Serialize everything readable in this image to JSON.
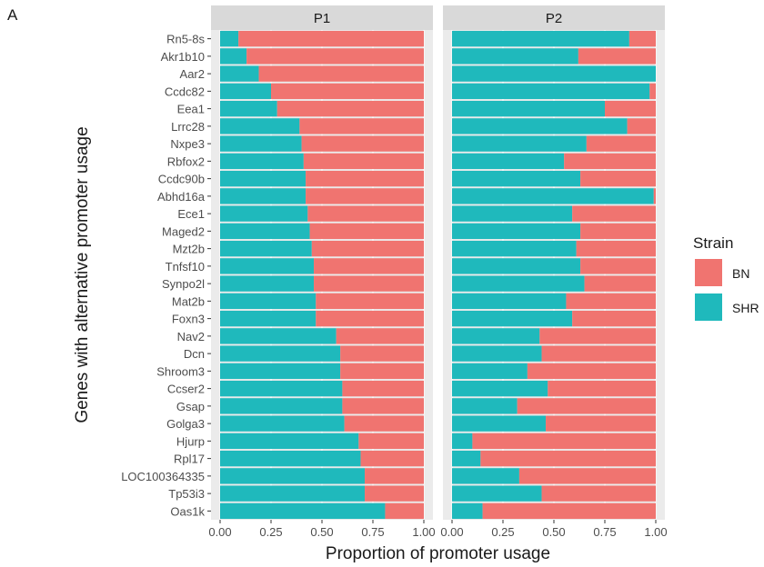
{
  "panel_label": "A",
  "chart_data": {
    "type": "bar",
    "orientation": "horizontal",
    "stacked": true,
    "xlabel": "Proportion of promoter usage",
    "ylabel": "Genes with alternative promoter usage",
    "xlim": [
      0,
      1
    ],
    "xticks": [
      "0.00",
      "0.25",
      "0.50",
      "0.75",
      "1.00"
    ],
    "legend": {
      "title": "Strain",
      "position": "right",
      "items": [
        {
          "name": "BN",
          "color": "#F07470"
        },
        {
          "name": "SHR",
          "color": "#1FB9BC"
        }
      ]
    },
    "categories": [
      "Rn5-8s",
      "Akr1b10",
      "Aar2",
      "Ccdc82",
      "Eea1",
      "Lrrc28",
      "Nxpe3",
      "Rbfox2",
      "Ccdc90b",
      "Abhd16a",
      "Ece1",
      "Maged2",
      "Mzt2b",
      "Tnfsf10",
      "Synpo2l",
      "Mat2b",
      "Foxn3",
      "Nav2",
      "Dcn",
      "Shroom3",
      "Ccser2",
      "Gsap",
      "Golga3",
      "Hjurp",
      "Rpl17",
      "LOC100364335",
      "Tp53i3",
      "Oas1k"
    ],
    "panels": [
      {
        "title": "P1",
        "SHR": [
          0.09,
          0.13,
          0.19,
          0.25,
          0.28,
          0.39,
          0.4,
          0.41,
          0.42,
          0.42,
          0.43,
          0.44,
          0.45,
          0.46,
          0.46,
          0.47,
          0.47,
          0.57,
          0.59,
          0.59,
          0.6,
          0.6,
          0.61,
          0.68,
          0.69,
          0.71,
          0.71,
          0.81
        ],
        "BN": [
          0.91,
          0.87,
          0.81,
          0.75,
          0.72,
          0.61,
          0.6,
          0.59,
          0.58,
          0.58,
          0.57,
          0.56,
          0.55,
          0.54,
          0.54,
          0.53,
          0.53,
          0.43,
          0.41,
          0.41,
          0.4,
          0.4,
          0.39,
          0.32,
          0.31,
          0.29,
          0.29,
          0.19
        ]
      },
      {
        "title": "P2",
        "SHR": [
          0.87,
          0.62,
          1.0,
          0.97,
          0.75,
          0.86,
          0.66,
          0.55,
          0.63,
          0.99,
          0.59,
          0.63,
          0.61,
          0.63,
          0.65,
          0.56,
          0.59,
          0.43,
          0.44,
          0.37,
          0.47,
          0.32,
          0.46,
          0.1,
          0.14,
          0.33,
          0.44,
          0.15
        ],
        "BN": [
          0.13,
          0.38,
          0.0,
          0.03,
          0.25,
          0.14,
          0.34,
          0.45,
          0.37,
          0.01,
          0.41,
          0.37,
          0.39,
          0.37,
          0.35,
          0.44,
          0.41,
          0.57,
          0.56,
          0.63,
          0.53,
          0.68,
          0.54,
          0.9,
          0.86,
          0.67,
          0.56,
          0.85
        ]
      }
    ]
  }
}
